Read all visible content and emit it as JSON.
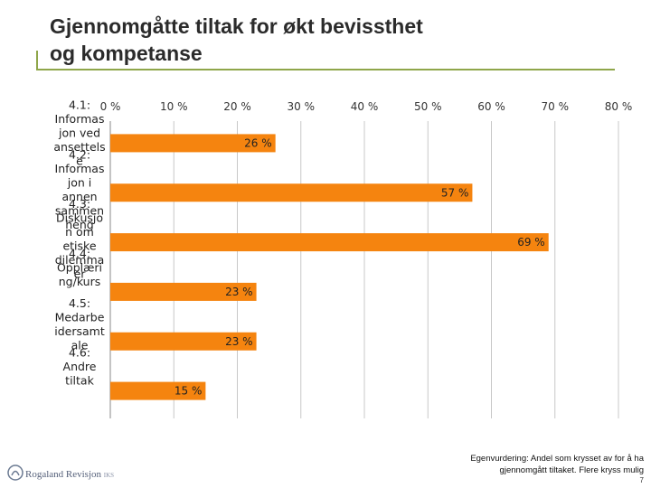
{
  "title_line1": "Gjennomgåtte tiltak for økt bevissthet",
  "title_line2": "og kompetanse",
  "colors": {
    "bar": "#f5840f",
    "gridline": "#c8c8c8",
    "axis_text": "#333333",
    "accent_rule": "#8fa64a"
  },
  "chart_data": {
    "type": "bar",
    "orientation": "horizontal",
    "title": "",
    "xlabel": "",
    "ylabel": "",
    "xlim": [
      0,
      80
    ],
    "x_ticks": [
      "0 %",
      "10 %",
      "20 %",
      "30 %",
      "40 %",
      "50 %",
      "60 %",
      "70 %",
      "80 %"
    ],
    "x_tick_values": [
      0,
      10,
      20,
      30,
      40,
      50,
      60,
      70,
      80
    ],
    "categories": [
      [
        "4.1:",
        "Informas",
        "jon ved",
        "ansettels",
        "e"
      ],
      [
        "4.2:",
        "Informas",
        "jon i",
        "annen",
        "sammen",
        "heng"
      ],
      [
        "4.3:",
        "Diskusjo",
        "n om",
        "etiske",
        "dilemma",
        "er"
      ],
      [
        "4.4:",
        "Opplæri",
        "ng/kurs"
      ],
      [
        "4.5:",
        "Medarbe",
        "idersamt",
        "ale"
      ],
      [
        "4.6:",
        "Andre",
        "tiltak"
      ]
    ],
    "values": [
      26,
      57,
      69,
      23,
      23,
      15
    ],
    "data_labels": [
      "26 %",
      "57 %",
      "69 %",
      "23 %",
      "23 %",
      "15 %"
    ],
    "grid": true,
    "legend": "none"
  },
  "footer": {
    "line1": "Egenvurdering: Andel som krysset av for å ha",
    "line2": "gjennomgått tiltaket. Flere kryss mulig",
    "page": "7"
  },
  "logo": {
    "name": "Rogaland Revisjon",
    "suffix": "IKS"
  }
}
